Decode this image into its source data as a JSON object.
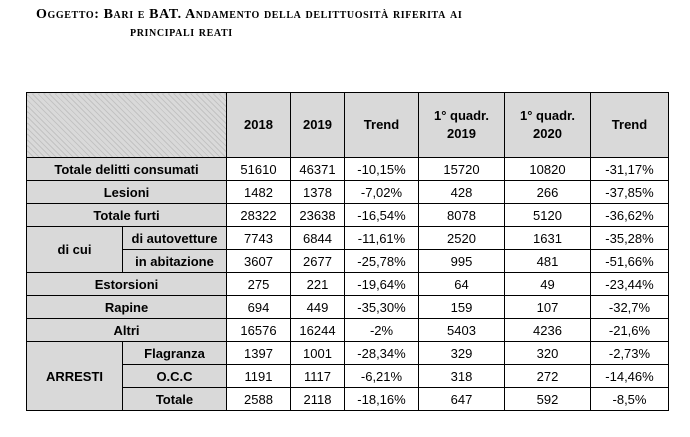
{
  "title": {
    "line1": "Oggetto: Bari e BAT. Andamento della delittuosità riferita ai",
    "line2": "principali reati"
  },
  "table": {
    "headers": [
      "2018",
      "2019",
      "Trend",
      "1° quadr. 2019",
      "1° quadr. 2020",
      "Trend"
    ],
    "header_q1_2019": [
      "1° quadr.",
      "2019"
    ],
    "header_q1_2020": [
      "1° quadr.",
      "2020"
    ],
    "rows": {
      "totale_delitti": {
        "label": "Totale delitti consumati",
        "values": [
          "51610",
          "46371",
          "-10,15%",
          "15720",
          "10820",
          "-31,17%"
        ]
      },
      "lesioni": {
        "label": "Lesioni",
        "values": [
          "1482",
          "1378",
          "-7,02%",
          "428",
          "266",
          "-37,85%"
        ]
      },
      "totale_furti": {
        "label": "Totale furti",
        "values": [
          "28322",
          "23638",
          "-16,54%",
          "8078",
          "5120",
          "-36,62%"
        ]
      },
      "di_cui_label": "di cui",
      "autovetture": {
        "label": "di autovetture",
        "values": [
          "7743",
          "6844",
          "-11,61%",
          "2520",
          "1631",
          "-35,28%"
        ]
      },
      "abitazione": {
        "label": "in abitazione",
        "values": [
          "3607",
          "2677",
          "-25,78%",
          "995",
          "481",
          "-51,66%"
        ]
      },
      "estorsioni": {
        "label": "Estorsioni",
        "values": [
          "275",
          "221",
          "-19,64%",
          "64",
          "49",
          "-23,44%"
        ]
      },
      "rapine": {
        "label": "Rapine",
        "values": [
          "694",
          "449",
          "-35,30%",
          "159",
          "107",
          "-32,7%"
        ]
      },
      "altri": {
        "label": "Altri",
        "values": [
          "16576",
          "16244",
          "-2%",
          "5403",
          "4236",
          "-21,6%"
        ]
      },
      "arresti_label": "ARRESTI",
      "flagranza": {
        "label": "Flagranza",
        "values": [
          "1397",
          "1001",
          "-28,34%",
          "329",
          "320",
          "-2,73%"
        ]
      },
      "occ": {
        "label": "O.C.C",
        "values": [
          "1191",
          "1117",
          "-6,21%",
          "318",
          "272",
          "-14,46%"
        ]
      },
      "totale_arresti": {
        "label": "Totale",
        "values": [
          "2588",
          "2118",
          "-18,16%",
          "647",
          "592",
          "-8,5%"
        ]
      }
    }
  }
}
